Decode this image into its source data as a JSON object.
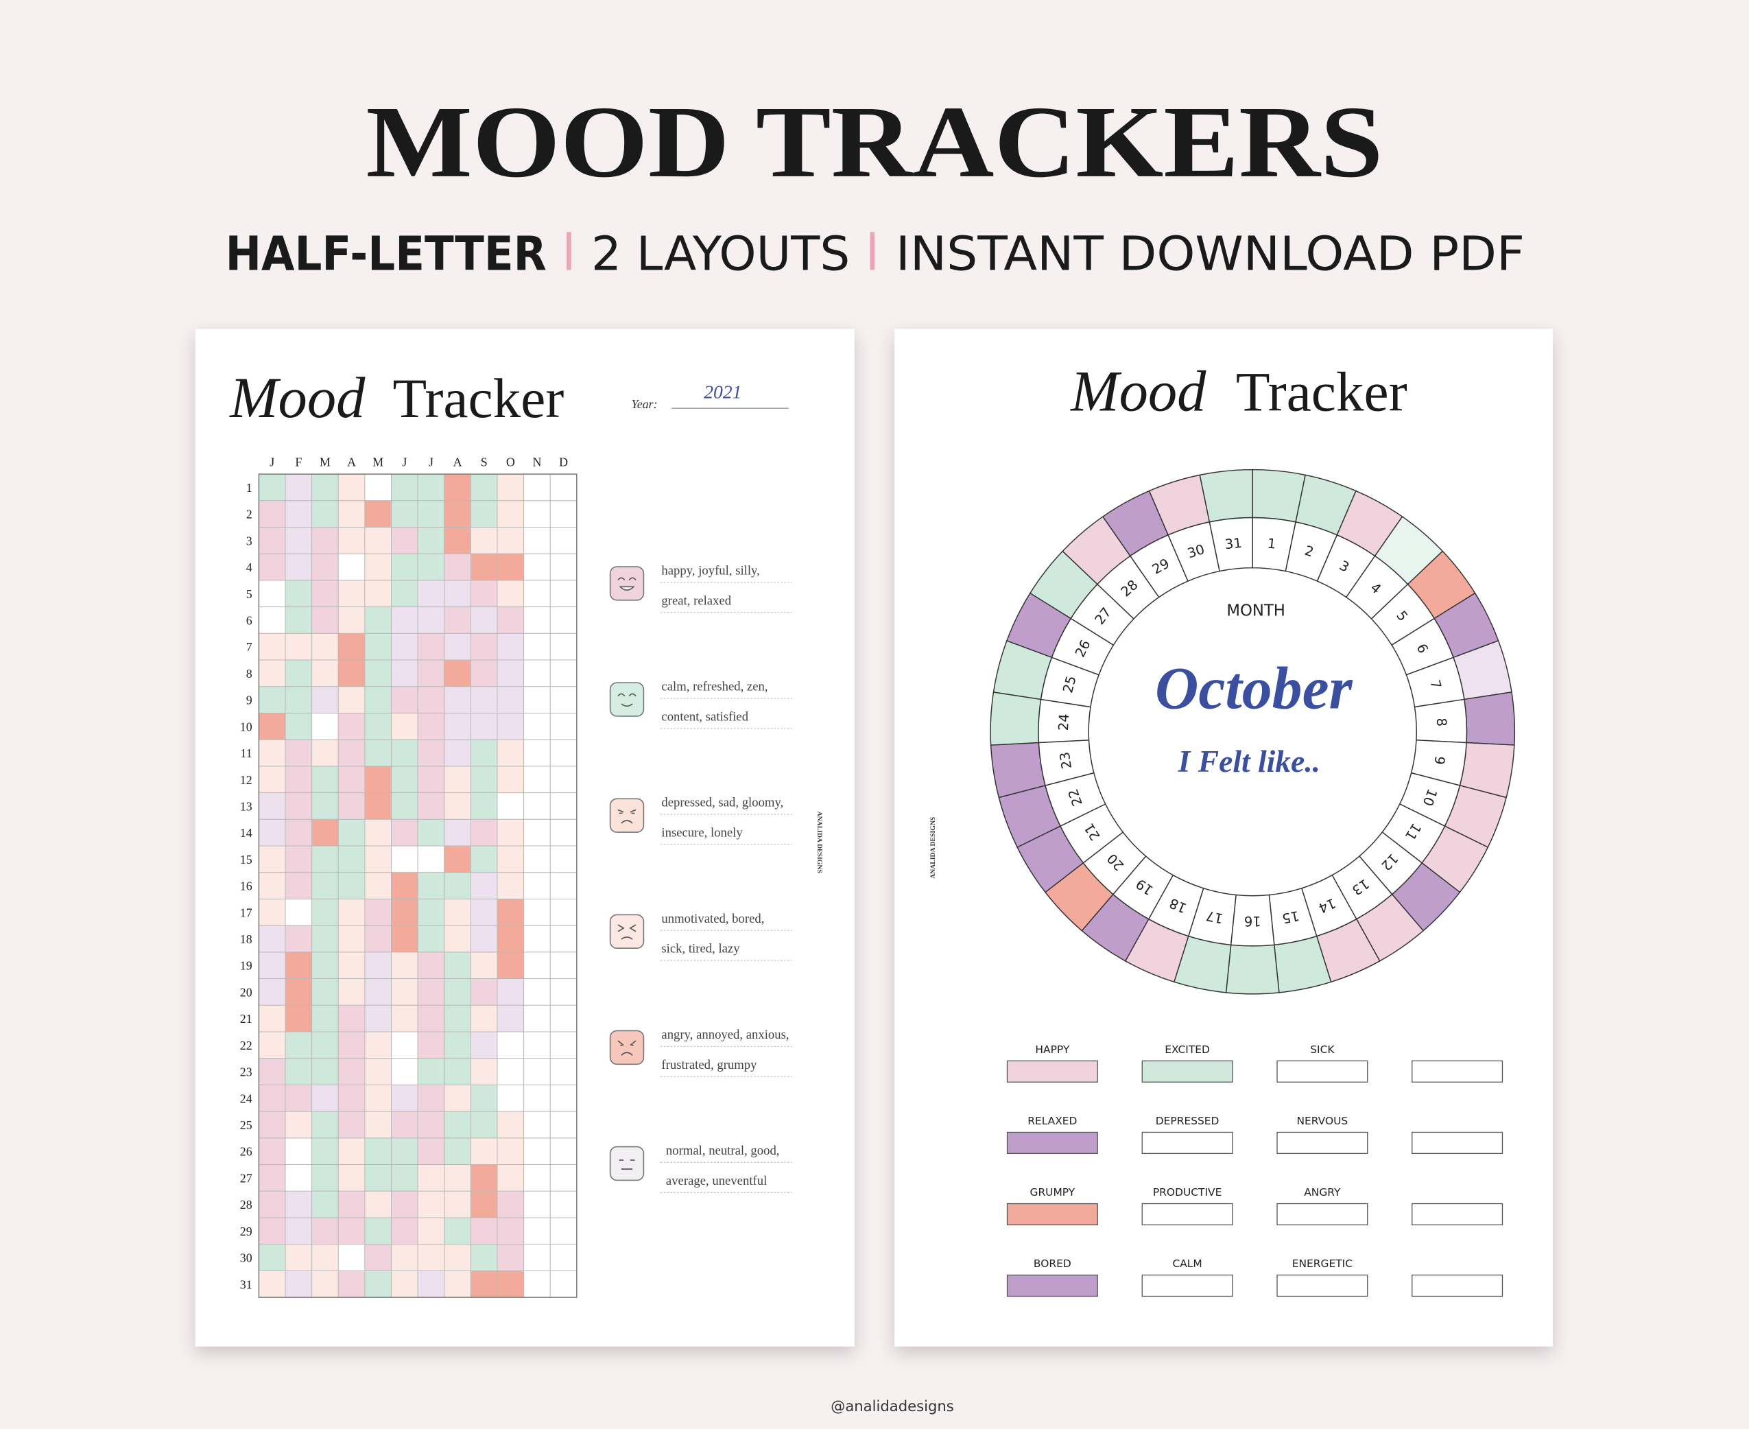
{
  "header": {
    "title": "MOOD TRACKERS",
    "subtitle": [
      "HALF-LETTER",
      "2 LAYOUTS",
      "INSTANT DOWNLOAD PDF"
    ]
  },
  "left": {
    "title_italic": "Mood",
    "title": "Tracker",
    "year_label": "Year:",
    "year": "2021",
    "months": [
      "J",
      "F",
      "M",
      "A",
      "M",
      "J",
      "J",
      "A",
      "S",
      "O",
      "N",
      "D"
    ],
    "days": [
      1,
      2,
      3,
      4,
      5,
      6,
      7,
      8,
      9,
      10,
      11,
      12,
      13,
      14,
      15,
      16,
      17,
      18,
      19,
      20,
      21,
      22,
      23,
      24,
      25,
      26,
      27,
      28,
      29,
      30,
      31
    ],
    "palette": {
      "w": "#ffffff",
      "g": "#cfe8dc",
      "p": "#f0d3dc",
      "l": "#ede1ef",
      "s": "#f4aa9a",
      "c": "#fde9e3"
    },
    "cells": [
      "glgcwggsgcww",
      "plgcsggsgcww",
      "plpccpgscc ww",
      "plpwcggpssww",
      "wgpccgllpcww",
      "wgpcgllplpww",
      "cccsglplplww",
      "cgcsglpsplww",
      "gglcgppl llww",
      "sgwpgcplllww",
      "cpcpggplgcww",
      "cpgpsgpcgcww",
      "lpgpsgpcgwww",
      "lpsgcpglpcww",
      "cpggcwwsgcww",
      "cpggcsgglcww",
      "cwgcpsgclsww",
      "lpgcpsgclsww",
      "lsgclcpgcsww",
      "lsgclcpgplww",
      "csgplcpgclww",
      "cggpcwpglwww",
      "pggpcwggcwww",
      "pplpclpcgwww",
      "pcgpcppggcww",
      "pwgcggpgccww",
      "pwgcggccscww",
      "plgpcpccspww",
      "plppgpcgppww",
      "gccwpcccgpww",
      "clcpgclcssww"
    ],
    "moods": [
      {
        "lines": [
          "happy, joyful, silly,",
          "great, relaxed"
        ],
        "color": "#f0d3dc"
      },
      {
        "lines": [
          "calm, refreshed, zen,",
          "content, satisfied"
        ],
        "color": "#d6ede3"
      },
      {
        "lines": [
          "depressed, sad, gloomy,",
          "insecure, lonely"
        ],
        "color": "#fbe3da"
      },
      {
        "lines": [
          "unmotivated, bored,",
          "sick, tired, lazy"
        ],
        "color": "#fbe8e2"
      },
      {
        "lines": [
          "angry, annoyed, anxious,",
          "frustrated, grumpy"
        ],
        "color": "#f7c7bb"
      },
      {
        "lines": [
          "normal, neutral, good,",
          "average, uneventful"
        ],
        "color": "#f1eff1"
      }
    ],
    "brand": "ANALIDA DESIGNS"
  },
  "right": {
    "title_italic": "Mood",
    "title": "Tracker",
    "month_label": "MONTH",
    "month": "October",
    "prompt": "I Felt like..",
    "days": [
      1,
      2,
      3,
      4,
      5,
      6,
      7,
      8,
      9,
      10,
      11,
      12,
      13,
      14,
      15,
      16,
      17,
      18,
      19,
      20,
      21,
      22,
      23,
      24,
      25,
      26,
      27,
      28,
      29,
      30,
      31
    ],
    "ring_colors": [
      "#cfe9dd",
      "#cfe9dd",
      "#f0d3dc",
      "#e8f4ee",
      "#f4aa9a",
      "#bf9ecb",
      "#efe2f0",
      "#bf9ecb",
      "#f0d3dc",
      "#f0d3dc",
      "#f0d3dc",
      "#bf9ecb",
      "#f0d3dc",
      "#f0d3dc",
      "#cfe9dd",
      "#cfe9dd",
      "#cfe9dd",
      "#f0d3dc",
      "#bf9ecb",
      "#f4aa9a",
      "#bf9ecb",
      "#bf9ecb",
      "#bf9ecb",
      "#cfe9dd",
      "#cfe9dd",
      "#bf9ecb",
      "#cfe9dd",
      "#f0d3dc",
      "#bf9ecb",
      "#f0d3dc",
      "#cfe9dd"
    ],
    "legend": [
      [
        {
          "label": "HAPPY",
          "color": "#f0d3dc"
        },
        {
          "label": "EXCITED",
          "color": "#cfe9dd"
        },
        {
          "label": "SICK",
          "color": "#ffffff"
        },
        {
          "color": "#ffffff"
        }
      ],
      [
        {
          "label": "RELAXED",
          "color": "#bf9ecb"
        },
        {
          "label": "DEPRESSED",
          "color": "#ffffff"
        },
        {
          "label": "NERVOUS",
          "color": "#ffffff"
        },
        {
          "color": "#ffffff"
        }
      ],
      [
        {
          "label": "GRUMPY",
          "color": "#f4aa9a"
        },
        {
          "label": "PRODUCTIVE",
          "color": "#ffffff"
        },
        {
          "label": "ANGRY",
          "color": "#ffffff"
        },
        {
          "color": "#ffffff"
        }
      ],
      [
        {
          "label": "BORED",
          "color": "#bf9ecb"
        },
        {
          "label": "CALM",
          "color": "#ffffff"
        },
        {
          "label": "ENERGETIC",
          "color": "#ffffff"
        },
        {
          "color": "#ffffff"
        }
      ]
    ],
    "brand": "ANALIDA DESIGNS"
  },
  "footer": "@analidadesigns"
}
